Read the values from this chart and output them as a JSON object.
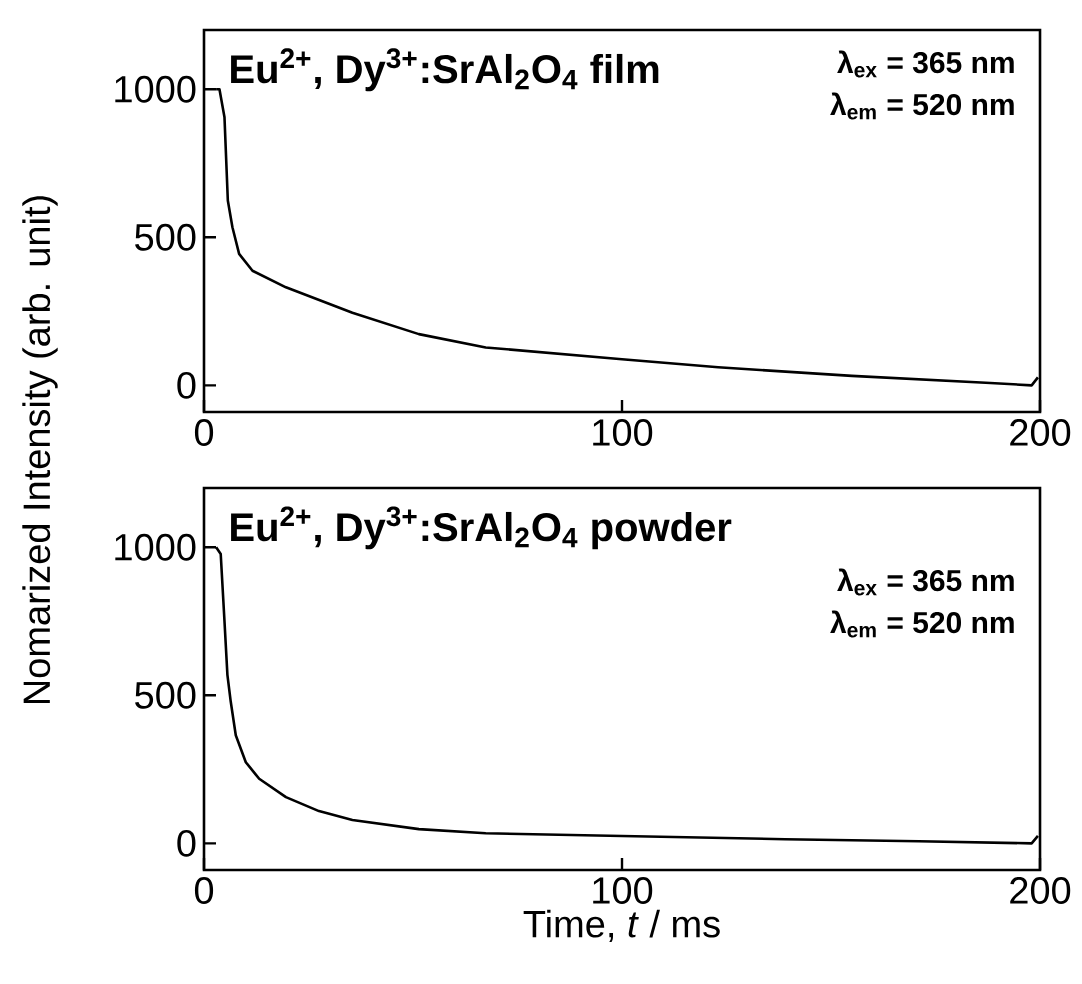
{
  "chart_data": [
    {
      "type": "line",
      "ylabel": "Nomarized Intensity (arb. unit)",
      "annotations": [
        "Eu$^{2+}$, Dy$^{3+}$:SrAl$_{2}$O$_{4}$ film",
        "λ$_{ex}$ = 365 nm",
        "λ$_{em}$ = 520 nm"
      ],
      "series": [
        {
          "color": "#000000",
          "x": [
            2.9,
            3.7,
            4.9,
            5.7,
            6.8,
            8.4,
            11.6,
            19.6,
            35.5,
            51.4,
            67.4,
            100,
            123,
            155,
            187,
            198,
            199.5
          ],
          "values": [
            1000,
            1000,
            905,
            624,
            534,
            444,
            387,
            331,
            245,
            173,
            128,
            88,
            61,
            32,
            9,
            0,
            27
          ]
        }
      ],
      "xlim": [
        0,
        200
      ],
      "xticks": [
        0,
        100,
        200
      ],
      "ylim": [
        -90,
        1200
      ],
      "yticks": [
        0,
        500,
        1000
      ],
      "line_style": "solid"
    },
    {
      "type": "line",
      "xlabel": "Time, *t* / ms",
      "annotations": [
        "Eu$^{2+}$, Dy$^{3+}$:SrAl$_{2}$O$_{4}$ powder",
        "λ$_{ex}$ = 365 nm",
        "λ$_{em}$ = 520 nm"
      ],
      "series": [
        {
          "color": "#000000",
          "x": [
            2.9,
            4,
            4.9,
            5.6,
            6.4,
            7.6,
            10,
            13.2,
            19.6,
            27.5,
            35.5,
            51.4,
            67.4,
            100,
            139,
            171,
            198,
            199.5
          ],
          "values": [
            1000,
            977,
            750,
            569,
            478,
            365,
            274,
            218,
            156,
            109,
            79,
            48,
            34,
            25,
            14,
            7,
            0,
            25
          ]
        }
      ],
      "xlim": [
        0,
        200
      ],
      "xticks": [
        0,
        100,
        200
      ],
      "ylim": [
        -90,
        1200
      ],
      "yticks": [
        0,
        500,
        1000
      ],
      "line_style": "solid"
    }
  ]
}
